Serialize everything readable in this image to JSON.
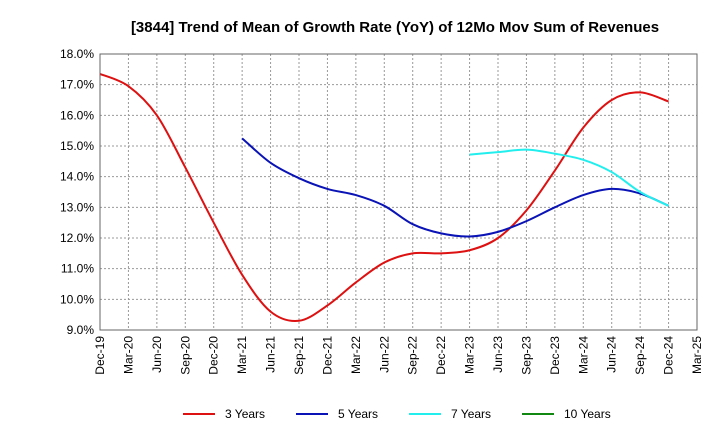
{
  "chart_data": {
    "type": "line",
    "title": "[3844]  Trend of Mean of Growth Rate (YoY) of 12Mo Mov Sum of Revenues",
    "xlabel": "",
    "ylabel": "",
    "ylim": [
      9.0,
      18.0
    ],
    "yticks": [
      "9.0%",
      "10.0%",
      "11.0%",
      "12.0%",
      "13.0%",
      "14.0%",
      "15.0%",
      "16.0%",
      "17.0%",
      "18.0%"
    ],
    "categories": [
      "Dec-19",
      "Mar-20",
      "Jun-20",
      "Sep-20",
      "Dec-20",
      "Mar-21",
      "Jun-21",
      "Sep-21",
      "Dec-21",
      "Mar-22",
      "Jun-22",
      "Sep-22",
      "Dec-22",
      "Mar-23",
      "Jun-23",
      "Sep-23",
      "Dec-23",
      "Mar-24",
      "Jun-24",
      "Sep-24",
      "Dec-24",
      "Mar-25"
    ],
    "series": [
      {
        "name": "3 Years",
        "color": "#dd1111",
        "values": [
          17.35,
          16.95,
          16.0,
          14.3,
          12.5,
          10.8,
          9.6,
          9.3,
          9.8,
          10.55,
          11.2,
          11.5,
          11.5,
          11.6,
          12.0,
          12.9,
          14.2,
          15.6,
          16.5,
          16.75,
          16.45,
          null
        ]
      },
      {
        "name": "5 Years",
        "color": "#0a13b5",
        "values": [
          null,
          null,
          null,
          null,
          null,
          15.25,
          14.45,
          13.95,
          13.6,
          13.4,
          13.05,
          12.45,
          12.15,
          12.05,
          12.2,
          12.55,
          13.0,
          13.4,
          13.6,
          13.45,
          13.05,
          null
        ]
      },
      {
        "name": "7 Years",
        "color": "#22eeee",
        "values": [
          null,
          null,
          null,
          null,
          null,
          null,
          null,
          null,
          null,
          null,
          null,
          null,
          null,
          14.72,
          14.8,
          14.88,
          14.75,
          14.55,
          14.15,
          13.5,
          13.05,
          null
        ]
      },
      {
        "name": "10 Years",
        "color": "#118811",
        "values": [
          null,
          null,
          null,
          null,
          null,
          null,
          null,
          null,
          null,
          null,
          null,
          null,
          null,
          null,
          null,
          null,
          null,
          null,
          null,
          null,
          null,
          null
        ]
      }
    ],
    "grid": true,
    "legend": "bottom"
  }
}
